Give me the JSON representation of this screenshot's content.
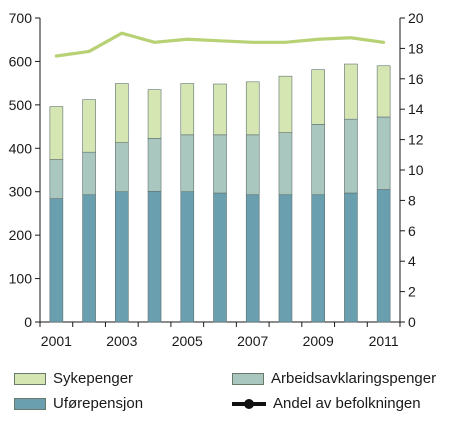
{
  "chart_data": {
    "type": "bar",
    "stacked": true,
    "years": [
      "2001",
      "2002",
      "2003",
      "2004",
      "2005",
      "2006",
      "2007",
      "2008",
      "2009",
      "2010",
      "2011"
    ],
    "x_tick_labels": [
      "2001",
      "2003",
      "2005",
      "2007",
      "2009",
      "2011"
    ],
    "series": [
      {
        "name": "Uførepensjon",
        "color": "#6a9fb0",
        "values": [
          284,
          293,
          300,
          301,
          300,
          297,
          293,
          293,
          293,
          297,
          305
        ]
      },
      {
        "name": "Arbeidsavklaringspenger",
        "color": "#a9c7be",
        "values": [
          90,
          98,
          113,
          122,
          131,
          134,
          138,
          143,
          162,
          170,
          167
        ]
      },
      {
        "name": "Sykepenger",
        "color": "#d5e6b3",
        "values": [
          122,
          121,
          136,
          112,
          118,
          117,
          122,
          130,
          126,
          127,
          118
        ]
      }
    ],
    "line": {
      "name": "Andel av befolkningen",
      "color": "#b7d174",
      "values": [
        17.5,
        17.8,
        19.0,
        18.4,
        18.6,
        18.5,
        18.4,
        18.4,
        18.6,
        18.7,
        18.4
      ]
    },
    "y_left": {
      "min": 0,
      "max": 700,
      "ticks": [
        0,
        100,
        200,
        300,
        400,
        500,
        600,
        700
      ]
    },
    "y_right": {
      "min": 0,
      "max": 20,
      "ticks": [
        0,
        2,
        4,
        6,
        8,
        10,
        12,
        14,
        16,
        18,
        20
      ]
    },
    "legend_position": "bottom",
    "grid": false
  },
  "legend": {
    "sykepenger": "Sykepenger",
    "arbeid": "Arbeidsavklaringspenger",
    "ufore": "Uførepensjon",
    "andel": "Andel av befolkningen"
  }
}
